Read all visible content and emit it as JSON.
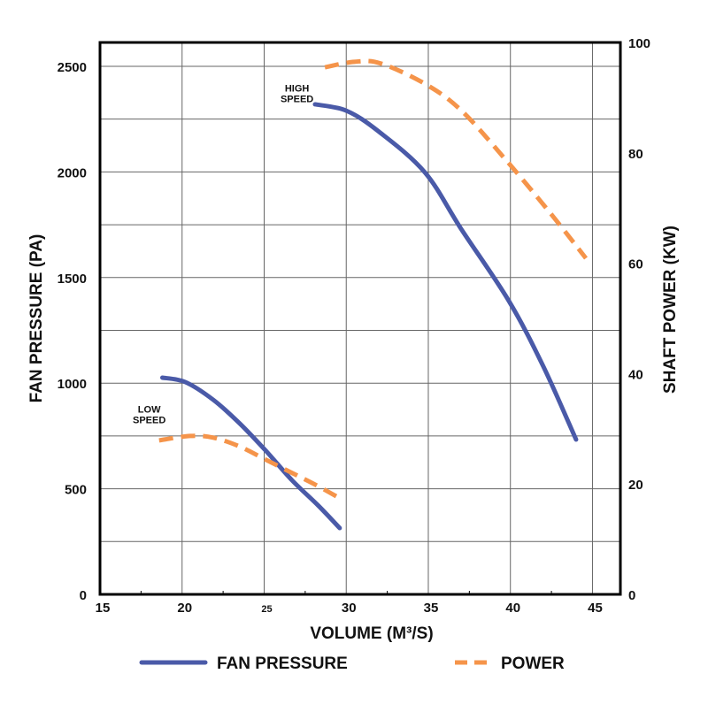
{
  "chart_data": {
    "type": "line",
    "xlabel": "VOLUME (M³/S)",
    "ylabel": "FAN PRESSURE (PA)",
    "y2label": "SHAFT POWER (KW)",
    "xlim": [
      15,
      46.7
    ],
    "ylim": [
      0,
      2613
    ],
    "y2lim": [
      0,
      100
    ],
    "xticks": [
      "15",
      "20",
      "25",
      "30",
      "35",
      "40",
      "45"
    ],
    "yticks": [
      "0",
      "500",
      "1000",
      "1500",
      "2000",
      "2500"
    ],
    "y2ticks": [
      "0",
      "20",
      "40",
      "60",
      "80",
      "100"
    ],
    "grid": true,
    "legend_position": "bottom",
    "legend": [
      "FAN PRESSURE",
      "POWER"
    ],
    "annotations": [
      {
        "text": [
          "HIGH",
          "SPEED"
        ],
        "x": 27,
        "y": 2380
      },
      {
        "text": [
          "LOW",
          "SPEED"
        ],
        "x": 18,
        "y": 860
      }
    ],
    "colors": {
      "pressure": "#4a5aa8",
      "power": "#f5944a"
    },
    "series": [
      {
        "legend": "FAN PRESSURE",
        "axis": "left",
        "curve": "high speed",
        "x": [
          28.1,
          30,
          32,
          34.8,
          37,
          39.9,
          42,
          44
        ],
        "y": [
          2320,
          2290,
          2190,
          1997,
          1730,
          1390,
          1080,
          733
        ]
      },
      {
        "legend": "POWER",
        "axis": "right",
        "curve": "high speed",
        "x": [
          28.7,
          30.5,
          32.1,
          34.8,
          37,
          39.7,
          42.4,
          44.6
        ],
        "y": [
          95.5,
          96.5,
          96.2,
          92.5,
          87.7,
          78.8,
          69.2,
          60.9
        ]
      },
      {
        "legend": "FAN PRESSURE",
        "axis": "left",
        "curve": "low speed",
        "x": [
          18.8,
          20.2,
          21.9,
          23.5,
          25.1,
          26.7,
          28.3,
          29.6
        ],
        "y": [
          1026,
          1005,
          921,
          810,
          680,
          540,
          420,
          314
        ]
      },
      {
        "legend": "POWER",
        "axis": "right",
        "curve": "low speed",
        "x": [
          18.6,
          20.5,
          21.9,
          23.5,
          25.1,
          26.7,
          28.1,
          29.5
        ],
        "y": [
          27.9,
          28.7,
          28.4,
          26.8,
          24.4,
          22,
          19.9,
          17.6
        ]
      }
    ]
  }
}
